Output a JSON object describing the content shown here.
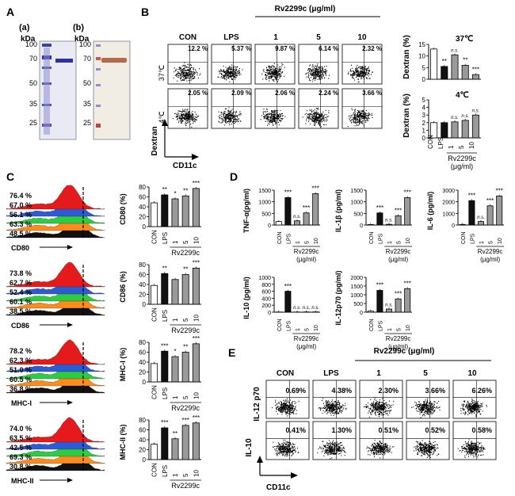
{
  "panels": {
    "A": "A",
    "B": "B",
    "C": "C",
    "D": "D",
    "E": "E"
  },
  "panelA": {
    "sub_a": "(a)",
    "sub_b": "(b)",
    "kda_a": "kDa",
    "kda_b": "kDa",
    "markers": [
      "100",
      "70",
      "50",
      "35",
      "25"
    ]
  },
  "panelB": {
    "agent_header": "Rv2299c (μg/ml)",
    "columns": [
      "CON",
      "LPS",
      "1",
      "5",
      "10"
    ],
    "rows": [
      "37℃",
      "4℃"
    ],
    "percent_37": [
      "12.2 %",
      "5.37 %",
      "9.87 %",
      "6.14 %",
      "2.32 %"
    ],
    "percent_4": [
      "2.05 %",
      "2.09 %",
      "2.06 %",
      "2.24 %",
      "3.66 %"
    ],
    "axis_y": "Dextran",
    "axis_x": "CD11c",
    "bar_titles": [
      "37℃",
      "4℃"
    ],
    "bar_ylabel": "Dextran (%)",
    "sig_37": [
      "",
      "**",
      "n.s.",
      "**",
      "***"
    ],
    "sig_4": [
      "",
      "",
      "n.s.",
      "n.s.",
      "n.s."
    ],
    "xcats": [
      "CON",
      "LPS",
      "1",
      "5",
      "10"
    ],
    "group_label": "Rv2299c",
    "unit_label": "(μg/ml)"
  },
  "panelC": {
    "blocks": [
      {
        "marker": "CD80",
        "percents": [
          "76.4 %",
          "67.0 %",
          "56.1 %",
          "63.3 %",
          "48.5 %"
        ],
        "ylabel": "CD80 (%)",
        "sig": [
          "",
          "**",
          "*",
          "**",
          "***"
        ]
      },
      {
        "marker": "CD86",
        "percents": [
          "73.8 %",
          "62.7 %",
          "52.4 %",
          "60.1 %",
          "38.5 %"
        ],
        "ylabel": "CD86 (%)",
        "sig": [
          "",
          "**",
          "",
          "**",
          "***"
        ]
      },
      {
        "marker": "MHC-I",
        "percents": [
          "78.2 %",
          "62.3 %",
          "51.0 %",
          "60.5 %",
          "36.8 %"
        ],
        "ylabel": "MHC-I (%)",
        "sig": [
          "",
          "***",
          "*",
          "**",
          "***"
        ]
      },
      {
        "marker": "MHC-II",
        "percents": [
          "74.0 %",
          "63.5 %",
          "42.5 %",
          "69.3 %",
          "30.8 %"
        ],
        "ylabel": "MHC-II (%)",
        "sig": [
          "",
          "***",
          "**",
          "***",
          "***"
        ]
      }
    ],
    "xcats": [
      "CON",
      "LPS",
      "1",
      "5",
      "10"
    ],
    "group_label": "Rv2299c"
  },
  "panelD": {
    "charts": [
      {
        "ylabel": "TNF-α(pg/ml)",
        "sig": [
          "",
          "***",
          "n.s.",
          "***",
          "***"
        ]
      },
      {
        "ylabel": "IL-1β (pg/ml)",
        "sig": [
          "",
          "***",
          "n.s.",
          "***",
          "***"
        ]
      },
      {
        "ylabel": "IL-6 (pg/ml)",
        "sig": [
          "",
          "***",
          "n.s.",
          "***",
          "***"
        ]
      },
      {
        "ylabel": "IL-10 (pg/ml)",
        "sig": [
          "",
          "***",
          "n.s.",
          "n.s.",
          "n.s."
        ]
      },
      {
        "ylabel": "IL-12p70 (pg/ml)",
        "sig": [
          "",
          "***",
          "n.s.",
          "***",
          "***"
        ]
      }
    ],
    "xcats": [
      "CON",
      "LPS",
      "1",
      "5",
      "10"
    ],
    "group_label": "Rv2299c",
    "unit_label": "(μg/ml)"
  },
  "panelE": {
    "agent_header": "Rv2299c (μg/ml)",
    "columns": [
      "CON",
      "LPS",
      "1",
      "5",
      "10"
    ],
    "row_il12": [
      "0.69%",
      "4.38%",
      "2.30%",
      "3.66%",
      "6.26%"
    ],
    "row_il10": [
      "0.41%",
      "1.30%",
      "0.51%",
      "0.52%",
      "0.58%"
    ],
    "rows": [
      "IL-12 p70",
      "IL-10"
    ],
    "axis_x": "CD11c"
  },
  "chart_data": [
    {
      "type": "bar",
      "title": "Dextran uptake at 37℃",
      "categories": [
        "CON",
        "LPS",
        "1",
        "5",
        "10"
      ],
      "values": [
        13,
        5.5,
        10.5,
        6,
        2
      ],
      "ylabel": "Dextran (%)",
      "ylim": [
        0,
        15
      ],
      "yticks": [
        0,
        5,
        10,
        15
      ]
    },
    {
      "type": "bar",
      "title": "Dextran uptake at 4℃",
      "categories": [
        "CON",
        "LPS",
        "1",
        "5",
        "10"
      ],
      "values": [
        2,
        2,
        2.1,
        2.3,
        3
      ],
      "ylabel": "Dextran (%)",
      "ylim": [
        0,
        5
      ],
      "yticks": [
        0,
        1,
        2,
        3,
        4,
        5
      ]
    },
    {
      "type": "bar",
      "title": "CD80",
      "categories": [
        "CON",
        "LPS",
        "1",
        "5",
        "10"
      ],
      "values": [
        48,
        64,
        56,
        62,
        77
      ],
      "ylabel": "CD80 (%)",
      "ylim": [
        0,
        80
      ],
      "yticks": [
        0,
        20,
        40,
        60,
        80
      ]
    },
    {
      "type": "bar",
      "title": "CD86",
      "categories": [
        "CON",
        "LPS",
        "1",
        "5",
        "10"
      ],
      "values": [
        38,
        62,
        50,
        60,
        73
      ],
      "ylabel": "CD86 (%)",
      "ylim": [
        0,
        80
      ],
      "yticks": [
        0,
        20,
        40,
        60,
        80
      ]
    },
    {
      "type": "bar",
      "title": "MHC-I",
      "categories": [
        "CON",
        "LPS",
        "1",
        "5",
        "10"
      ],
      "values": [
        37,
        62,
        51,
        60,
        77
      ],
      "ylabel": "MHC-I (%)",
      "ylim": [
        0,
        80
      ],
      "yticks": [
        0,
        20,
        40,
        60,
        80
      ]
    },
    {
      "type": "bar",
      "title": "MHC-II",
      "categories": [
        "CON",
        "LPS",
        "1",
        "5",
        "10"
      ],
      "values": [
        31,
        64,
        42,
        69,
        74
      ],
      "ylabel": "MHC-II (%)",
      "ylim": [
        0,
        80
      ],
      "yticks": [
        0,
        20,
        40,
        60,
        80
      ]
    },
    {
      "type": "bar",
      "title": "TNF-α",
      "categories": [
        "CON",
        "LPS",
        "1",
        "5",
        "10"
      ],
      "values": [
        150,
        1180,
        180,
        520,
        1350
      ],
      "ylabel": "TNF-α(pg/ml)",
      "ylim": [
        0,
        1500
      ],
      "yticks": [
        0,
        500,
        1000,
        1500
      ]
    },
    {
      "type": "bar",
      "title": "IL-1β",
      "categories": [
        "CON",
        "LPS",
        "1",
        "5",
        "10"
      ],
      "values": [
        20,
        520,
        30,
        400,
        1180
      ],
      "ylabel": "IL-1β (pg/ml)",
      "ylim": [
        0,
        1500
      ],
      "yticks": [
        0,
        500,
        1000,
        1500
      ]
    },
    {
      "type": "bar",
      "title": "IL-6",
      "categories": [
        "CON",
        "LPS",
        "1",
        "5",
        "10"
      ],
      "values": [
        50,
        2100,
        300,
        1650,
        2500
      ],
      "ylabel": "IL-6 (pg/ml)",
      "ylim": [
        0,
        3000
      ],
      "yticks": [
        0,
        1000,
        2000,
        3000
      ]
    },
    {
      "type": "bar",
      "title": "IL-10",
      "categories": [
        "CON",
        "LPS",
        "1",
        "5",
        "10"
      ],
      "values": [
        5,
        600,
        5,
        8,
        8
      ],
      "ylabel": "IL-10 (pg/ml)",
      "ylim": [
        0,
        1000
      ],
      "yticks": [
        0,
        200,
        400,
        600,
        800,
        1000
      ]
    },
    {
      "type": "bar",
      "title": "IL-12p70",
      "categories": [
        "CON",
        "LPS",
        "1",
        "5",
        "10"
      ],
      "values": [
        60,
        1250,
        180,
        760,
        1350
      ],
      "ylabel": "IL-12p70 (pg/ml)",
      "ylim": [
        0,
        2000
      ],
      "yticks": [
        0,
        500,
        1000,
        1500,
        2000
      ]
    }
  ],
  "colors": {
    "black": "#111111",
    "gray": "#9a9a9a",
    "white": "#ffffff",
    "red": "#e41a1c",
    "blue": "#2c5bd8",
    "green": "#2ecc40",
    "orange": "#ff8c1a",
    "membrane": "#f2ede4"
  }
}
